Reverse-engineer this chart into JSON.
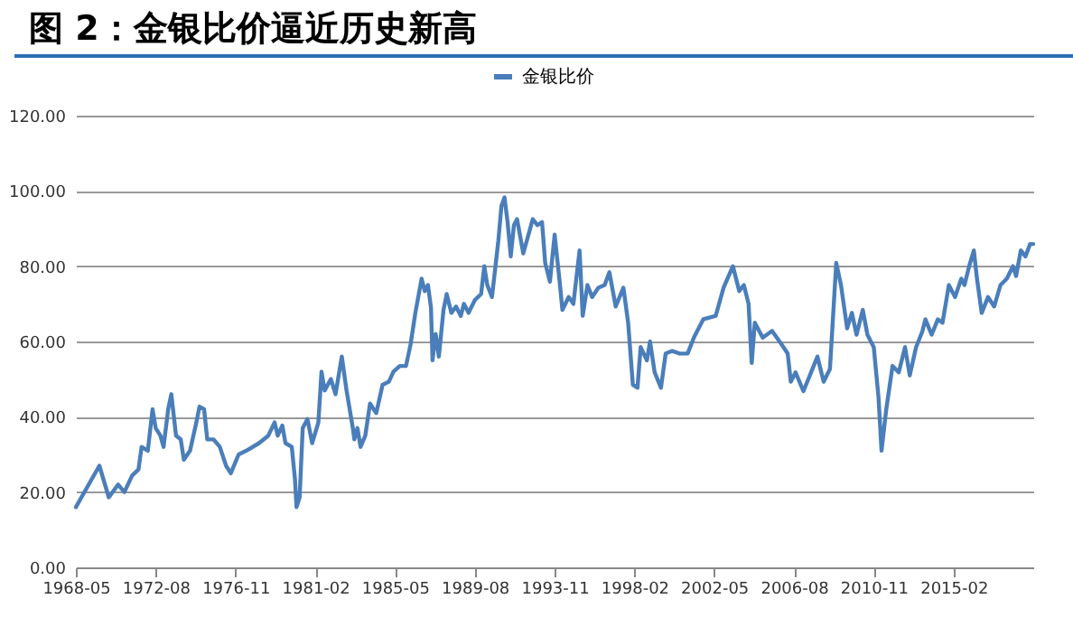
{
  "chart_data": {
    "type": "line",
    "title": "图 2：金银比价逼近历史新高",
    "x": [
      "1968-05",
      "1969-08",
      "1970-02",
      "1970-08",
      "1970-12",
      "1971-05",
      "1971-09",
      "1971-11",
      "1972-03",
      "1972-06",
      "1972-08",
      "1972-11",
      "1973-01",
      "1973-04",
      "1973-06",
      "1973-09",
      "1973-12",
      "1974-02",
      "1974-06",
      "1974-10",
      "1974-12",
      "1975-03",
      "1975-05",
      "1975-09",
      "1976-01",
      "1976-05",
      "1976-08",
      "1977-01",
      "1977-06",
      "1978-02",
      "1978-08",
      "1978-12",
      "1979-02",
      "1979-05",
      "1979-07",
      "1979-11",
      "1980-01",
      "1980-02",
      "1980-04",
      "1980-06",
      "1980-09",
      "1980-12",
      "1981-04",
      "1981-06",
      "1981-08",
      "1981-12",
      "1982-03",
      "1982-07",
      "1982-10",
      "1983-02",
      "1983-03",
      "1983-05",
      "1983-07",
      "1983-10",
      "1984-01",
      "1984-05",
      "1984-09",
      "1985-01",
      "1985-04",
      "1985-08",
      "1985-12",
      "1986-03",
      "1986-06",
      "1986-10",
      "1986-12",
      "1987-02",
      "1987-04",
      "1987-05",
      "1987-07",
      "1987-09",
      "1987-12",
      "1988-02",
      "1988-05",
      "1988-08",
      "1988-11",
      "1989-01",
      "1989-04",
      "1989-08",
      "1989-12",
      "1990-02",
      "1990-04",
      "1990-07",
      "1990-11",
      "1991-01",
      "1991-03",
      "1991-05",
      "1991-07",
      "1991-09",
      "1991-11",
      "1992-03",
      "1992-09",
      "1992-12",
      "1993-03",
      "1993-05",
      "1993-08",
      "1993-11",
      "1994-02",
      "1994-04",
      "1994-08",
      "1994-11",
      "1995-03",
      "1995-05",
      "1995-08",
      "1995-11",
      "1996-03",
      "1996-07",
      "1996-10",
      "1997-02",
      "1997-07",
      "1997-10",
      "1998-01",
      "1998-04",
      "1998-06",
      "1998-10",
      "1998-12",
      "1999-03",
      "1999-07",
      "1999-10",
      "2000-02",
      "2000-07",
      "2000-12",
      "2001-04",
      "2001-10",
      "2002-06",
      "2002-11",
      "2003-05",
      "2003-09",
      "2003-12",
      "2004-03",
      "2004-05",
      "2004-07",
      "2004-12",
      "2005-06",
      "2005-12",
      "2006-04",
      "2006-06",
      "2006-09",
      "2007-02",
      "2007-07",
      "2007-11",
      "2008-03",
      "2008-07",
      "2008-11",
      "2009-02",
      "2009-06",
      "2009-09",
      "2009-12",
      "2010-04",
      "2010-07",
      "2010-11",
      "2011-02",
      "2011-04",
      "2011-07",
      "2011-11",
      "2012-03",
      "2012-07",
      "2012-10",
      "2013-02",
      "2013-06",
      "2013-08",
      "2013-12",
      "2014-04",
      "2014-07",
      "2014-11",
      "2015-03",
      "2015-07",
      "2015-09",
      "2015-12",
      "2016-03",
      "2016-05",
      "2016-08",
      "2016-12",
      "2017-04",
      "2017-08",
      "2017-12",
      "2018-04",
      "2018-06",
      "2018-09",
      "2018-12",
      "2019-03",
      "2019-05"
    ],
    "series": [
      {
        "name": "金银比价",
        "color": "#4a7ebb",
        "values": [
          16,
          27,
          18.6,
          22,
          20,
          24.4,
          26,
          32,
          31,
          42,
          37,
          35,
          32,
          42,
          46,
          35,
          34,
          28.6,
          31,
          38.5,
          42.7,
          42,
          34,
          34,
          32,
          27,
          25,
          30,
          31,
          33,
          35,
          38.5,
          35,
          37.7,
          33,
          32,
          23.6,
          16,
          18.6,
          37,
          39.4,
          33,
          38.5,
          52,
          47,
          50,
          46,
          56,
          47,
          37,
          34,
          37,
          32,
          35,
          43.5,
          41,
          48.5,
          49.3,
          52,
          53.5,
          53.5,
          59.3,
          67.6,
          76.7,
          73.4,
          75,
          69,
          55,
          62,
          56,
          68.4,
          72.6,
          67.6,
          69.3,
          66.8,
          70,
          67.6,
          71,
          72.6,
          80,
          75,
          71.8,
          86.7,
          96,
          98.3,
          91.7,
          82.6,
          90.9,
          92.5,
          83.4,
          92.5,
          90.9,
          91.7,
          80.9,
          75.9,
          88.4,
          76.7,
          68.4,
          71.8,
          70,
          84.2,
          66.8,
          75,
          71.8,
          74.3,
          75,
          78.4,
          69.3,
          74.3,
          65,
          48.5,
          47.7,
          58.5,
          55,
          60,
          51.8,
          47.7,
          56.8,
          57.5,
          56.8,
          56.8,
          61,
          65.9,
          66.8,
          74.3,
          80,
          73.4,
          75,
          70,
          54.3,
          65,
          61,
          62.8,
          59.3,
          56.8,
          49.3,
          51.8,
          46.8,
          51.8,
          56,
          49.3,
          52.7,
          80.9,
          75,
          63.5,
          67.6,
          61.8,
          68.4,
          61.8,
          58.5,
          45.2,
          31,
          41.9,
          53.5,
          51.8,
          58.5,
          51,
          58.5,
          62.6,
          65.9,
          61.8,
          65.9,
          65,
          75,
          71.8,
          76.7,
          75,
          80,
          84.2,
          76.7,
          67.6,
          71.8,
          69.3,
          75,
          76.7,
          80,
          77.4,
          84.2,
          82.6,
          85.9,
          85.9
        ]
      }
    ],
    "xlim": [
      "1968-05",
      "2019-05"
    ],
    "xticks": [
      "1968-05",
      "1972-08",
      "1976-11",
      "1981-02",
      "1985-05",
      "1989-08",
      "1993-11",
      "1998-02",
      "2002-05",
      "2006-08",
      "2010-11",
      "2015-02"
    ],
    "ylim": [
      0,
      120
    ],
    "yticks": [
      {
        "value": 0,
        "label": "0.00"
      },
      {
        "value": 20,
        "label": "20.00"
      },
      {
        "value": 40,
        "label": "40.00"
      },
      {
        "value": 60,
        "label": "60.00"
      },
      {
        "value": 80,
        "label": "80.00"
      },
      {
        "value": 100,
        "label": "100.00"
      },
      {
        "value": 120,
        "label": "120.00"
      }
    ],
    "grid": "y",
    "legend": "top",
    "marker": "none",
    "line_style": "solid"
  }
}
